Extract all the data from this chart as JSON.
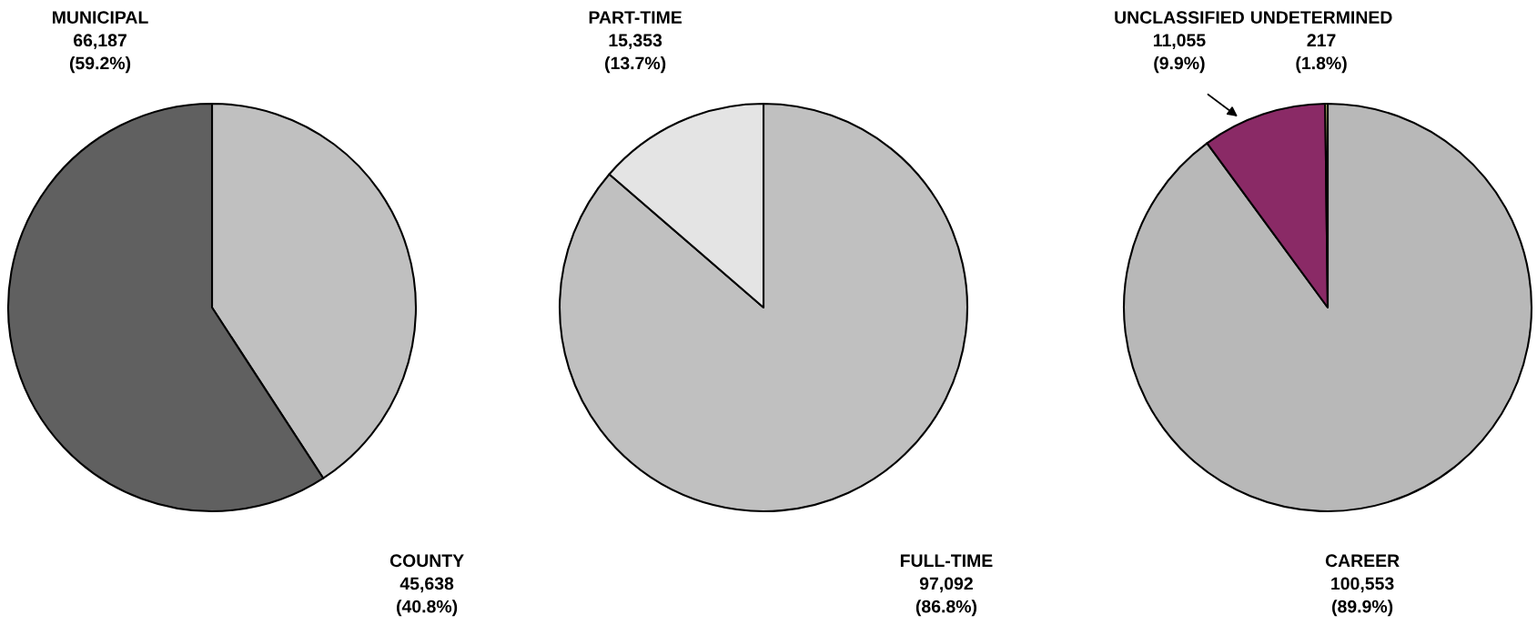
{
  "chart_data": [
    {
      "type": "pie",
      "categories": [
        "COUNTY",
        "MUNICIPAL"
      ],
      "values": [
        45638,
        66187
      ],
      "colors": [
        "#c0c0c0",
        "#606060"
      ],
      "value_labels": [
        "45,638\n(40.8%)",
        "66,187\n(59.2%)"
      ]
    },
    {
      "type": "pie",
      "categories": [
        "FULL-TIME",
        "PART-TIME"
      ],
      "values": [
        97092,
        15353
      ],
      "colors": [
        "#c0c0c0",
        "#e4e4e4"
      ],
      "value_labels": [
        "97,092\n(86.8%)",
        "15,353\n(13.7%)"
      ]
    },
    {
      "type": "pie",
      "categories": [
        "CAREER",
        "UNCLASSIFIED",
        "UNDETERMINED"
      ],
      "values": [
        100553,
        11055,
        217
      ],
      "colors": [
        "#b8b8b8",
        "#8a2a66",
        "#ffff99"
      ],
      "value_labels": [
        "100,553\n(89.9%)",
        "11,055\n(9.9%)",
        "217\n(1.8%)"
      ]
    }
  ]
}
